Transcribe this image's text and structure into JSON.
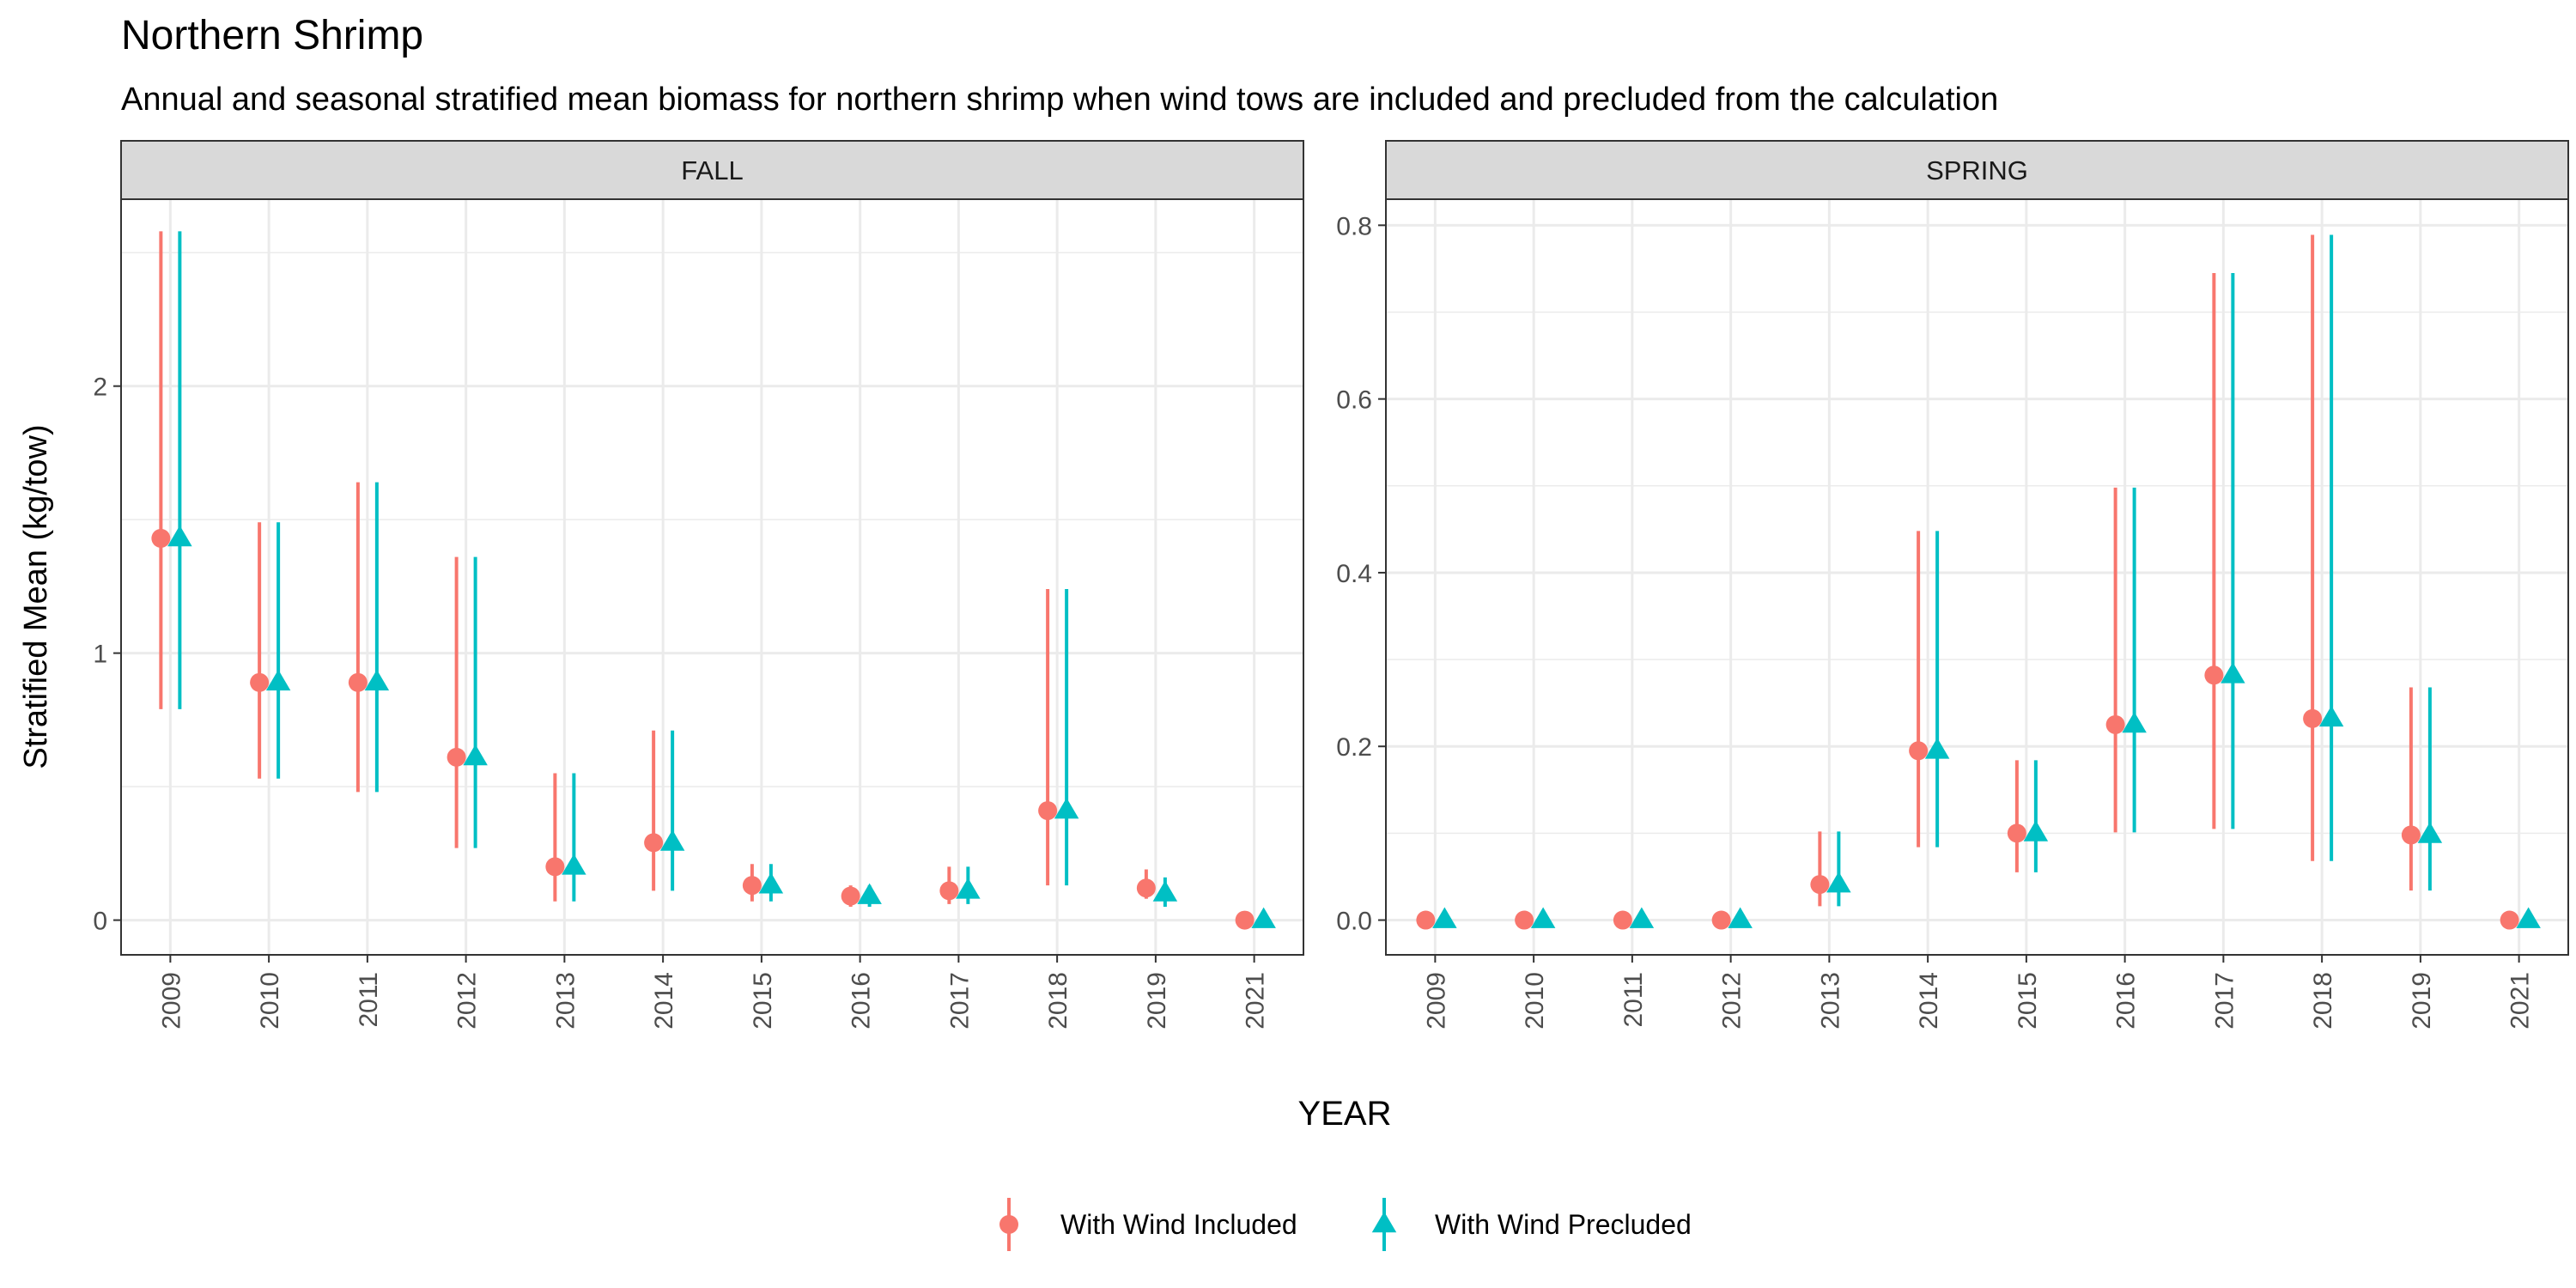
{
  "title": "Northern Shrimp",
  "subtitle": "Annual and seasonal stratified mean biomass for northern shrimp when wind tows are included and precluded from the calculation",
  "xlabel": "YEAR",
  "ylabel": "Stratified Mean (kg/tow)",
  "colors": {
    "included": "#F8766D",
    "precluded": "#00BFC4",
    "strip": "#D9D9D9",
    "grid": "#EBEBEB"
  },
  "legend": {
    "placement": "bottom",
    "items": [
      {
        "key": "included",
        "label": "With Wind Included",
        "shape": "circle"
      },
      {
        "key": "precluded",
        "label": "With Wind Precluded",
        "shape": "triangle"
      }
    ]
  },
  "chart_data": [
    {
      "type": "scatter",
      "panel": "FALL",
      "categories": [
        "2009",
        "2010",
        "2011",
        "2012",
        "2013",
        "2014",
        "2015",
        "2016",
        "2017",
        "2018",
        "2019",
        "2021"
      ],
      "ylim": [
        -0.13,
        2.7
      ],
      "yticks": [
        0,
        1,
        2
      ],
      "grid": true,
      "series": [
        {
          "name": "With Wind Included",
          "key": "included",
          "values": [
            1.43,
            0.89,
            0.89,
            0.61,
            0.2,
            0.29,
            0.13,
            0.09,
            0.11,
            0.41,
            0.12,
            0.0
          ],
          "lower": [
            0.79,
            0.53,
            0.48,
            0.27,
            0.07,
            0.11,
            0.07,
            0.05,
            0.06,
            0.13,
            0.08,
            0.0
          ],
          "upper": [
            2.58,
            1.49,
            1.64,
            1.36,
            0.55,
            0.71,
            0.21,
            0.13,
            0.2,
            1.24,
            0.19,
            0.0
          ]
        },
        {
          "name": "With Wind Precluded",
          "key": "precluded",
          "values": [
            1.43,
            0.89,
            0.89,
            0.61,
            0.2,
            0.29,
            0.13,
            0.09,
            0.11,
            0.41,
            0.1,
            0.0
          ],
          "lower": [
            0.79,
            0.53,
            0.48,
            0.27,
            0.07,
            0.11,
            0.07,
            0.05,
            0.06,
            0.13,
            0.05,
            0.0
          ],
          "upper": [
            2.58,
            1.49,
            1.64,
            1.36,
            0.55,
            0.71,
            0.21,
            0.13,
            0.2,
            1.24,
            0.16,
            0.0
          ]
        }
      ]
    },
    {
      "type": "scatter",
      "panel": "SPRING",
      "categories": [
        "2009",
        "2010",
        "2011",
        "2012",
        "2013",
        "2014",
        "2015",
        "2016",
        "2017",
        "2018",
        "2019",
        "2021"
      ],
      "ylim": [
        -0.04,
        0.83
      ],
      "yticks": [
        0.0,
        0.2,
        0.4,
        0.6,
        0.8
      ],
      "ytick_labels": [
        "0.0",
        "0.2",
        "0.4",
        "0.6",
        "0.8"
      ],
      "grid": true,
      "series": [
        {
          "name": "With Wind Included",
          "key": "included",
          "values": [
            0.0,
            0.0,
            0.0,
            0.0,
            0.041,
            0.195,
            0.1,
            0.225,
            0.282,
            0.232,
            0.098,
            0.0
          ],
          "lower": [
            0.0,
            0.0,
            0.0,
            0.0,
            0.016,
            0.084,
            0.055,
            0.101,
            0.105,
            0.068,
            0.034,
            0.0
          ],
          "upper": [
            0.0,
            0.0,
            0.0,
            0.0,
            0.102,
            0.448,
            0.184,
            0.498,
            0.745,
            0.789,
            0.268,
            0.0
          ]
        },
        {
          "name": "With Wind Precluded",
          "key": "precluded",
          "values": [
            0.0,
            0.0,
            0.0,
            0.0,
            0.041,
            0.195,
            0.1,
            0.225,
            0.282,
            0.232,
            0.098,
            0.0
          ],
          "lower": [
            0.0,
            0.0,
            0.0,
            0.0,
            0.016,
            0.084,
            0.055,
            0.101,
            0.105,
            0.068,
            0.034,
            0.0
          ],
          "upper": [
            0.0,
            0.0,
            0.0,
            0.0,
            0.102,
            0.448,
            0.184,
            0.498,
            0.745,
            0.789,
            0.268,
            0.0
          ]
        }
      ]
    }
  ]
}
